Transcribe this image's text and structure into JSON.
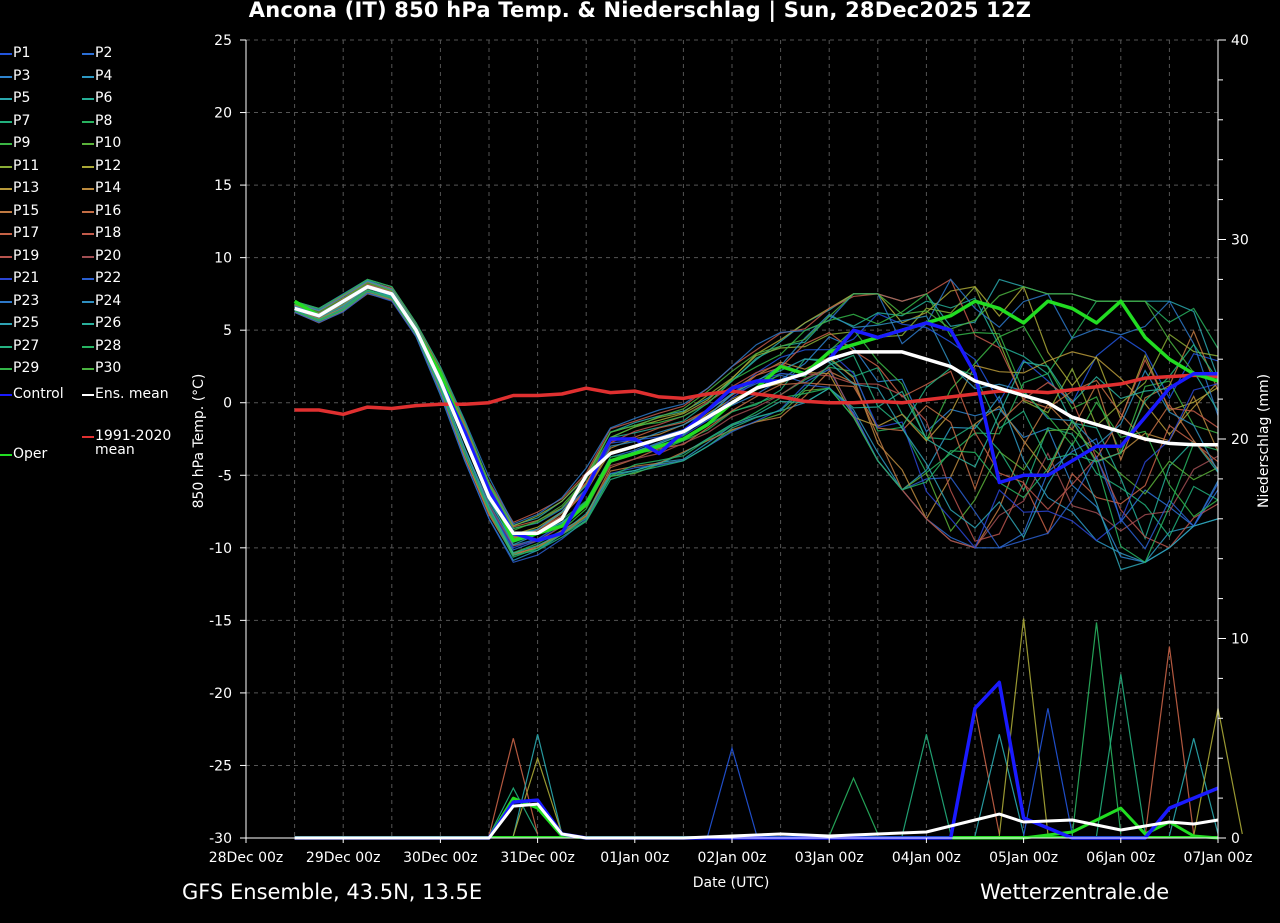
{
  "header": {
    "title": "Ancona  (IT)  850 hPa Temp. & Niederschlag | Sun, 28Dec2025 12Z"
  },
  "footer": {
    "left": "GFS Ensemble, 43.5N, 13.5E",
    "right": "Wetterzentrale.de"
  },
  "legend": {
    "members": [
      "P1",
      "P2",
      "P3",
      "P4",
      "P5",
      "P6",
      "P7",
      "P8",
      "P9",
      "P10",
      "P11",
      "P12",
      "P13",
      "P14",
      "P15",
      "P16",
      "P17",
      "P18",
      "P19",
      "P20",
      "P21",
      "P22",
      "P23",
      "P24",
      "P25",
      "P26",
      "P27",
      "P28",
      "P29",
      "P30"
    ],
    "member_colors": [
      "#2255dd",
      "#2b6fd6",
      "#2e84cf",
      "#2d98c2",
      "#2aa8ae",
      "#25ae96",
      "#22b07d",
      "#28b25f",
      "#3bb544",
      "#5ab23a",
      "#8aad36",
      "#aaa836",
      "#b89a3a",
      "#bb8a3e",
      "#c07a42",
      "#c36d44",
      "#c66246",
      "#c25a4a",
      "#b8544e",
      "#a04e52",
      "#2a45d4",
      "#2a5fcf",
      "#2d78c8",
      "#2f8fc0",
      "#2ea3b4",
      "#2ab09c",
      "#25b381",
      "#27b462",
      "#33b548",
      "#4ab240"
    ],
    "control": {
      "label": "Control",
      "color": "#1a1aff"
    },
    "ens_mean": {
      "label": "Ens. mean",
      "color": "#ffffff"
    },
    "climate": {
      "label": "1991-2020",
      "label2": "mean",
      "color": "#e03030"
    },
    "oper": {
      "label": "Oper",
      "color": "#22dd22"
    }
  },
  "chart_data": {
    "type": "line",
    "title": "Ancona  (IT)  850 hPa Temp. & Niederschlag | Sun, 28Dec2025 12Z",
    "xlabel": "Date (UTC)",
    "ylabel": "850 hPa Temp. (°C)",
    "y2label": "Niederschlag (mm)",
    "ylim": [
      -30,
      25
    ],
    "y2lim": [
      0,
      40
    ],
    "yticks": [
      25,
      20,
      15,
      10,
      5,
      0,
      -5,
      -10,
      -15,
      -20,
      -25,
      -30
    ],
    "y2ticks": [
      40,
      30,
      20,
      10,
      0
    ],
    "x_tick_labels": [
      "28Dec 00z",
      "29Dec 00z",
      "30Dec 00z",
      "31Dec 00z",
      "01Jan 00z",
      "02Jan 00z",
      "03Jan 00z",
      "04Jan 00z",
      "05Jan 00z",
      "06Jan 00z",
      "07Jan 00z"
    ],
    "x_unit": "hours since 28Dec 00z",
    "x_range": [
      0,
      240
    ],
    "grid": true,
    "series": [
      {
        "name": "Oper",
        "axis": "temp",
        "x": [
          12,
          18,
          24,
          30,
          36,
          42,
          48,
          54,
          60,
          66,
          72,
          78,
          84,
          90,
          96,
          102,
          108,
          114,
          120,
          126,
          132,
          138,
          144,
          150,
          156,
          162,
          168,
          174,
          180,
          186,
          192,
          198,
          204,
          210,
          216,
          222,
          228,
          234,
          240
        ],
        "values": [
          7,
          6,
          7,
          8,
          7.5,
          5,
          2,
          -2,
          -6,
          -9.5,
          -9,
          -8.5,
          -7,
          -4,
          -3.5,
          -3,
          -2.5,
          -1.5,
          0,
          1,
          2.5,
          2,
          3.5,
          4,
          4.5,
          5,
          5.5,
          6,
          7,
          6.5,
          5.5,
          7,
          6.5,
          5.5,
          7,
          4.5,
          3,
          2,
          1.5
        ]
      },
      {
        "name": "Control",
        "axis": "temp",
        "x": [
          12,
          18,
          24,
          30,
          36,
          42,
          48,
          54,
          60,
          66,
          72,
          78,
          84,
          90,
          96,
          102,
          108,
          114,
          120,
          126,
          132,
          138,
          144,
          150,
          156,
          162,
          168,
          174,
          180,
          186,
          192,
          198,
          204,
          210,
          216,
          222,
          228,
          234,
          240
        ],
        "values": [
          6.5,
          6,
          7,
          8,
          7.5,
          5,
          1.5,
          -2,
          -6,
          -9,
          -9.5,
          -9,
          -6,
          -2.5,
          -2.5,
          -3.5,
          -2,
          -0.5,
          1,
          1.5,
          1.5,
          2,
          3,
          5,
          4.5,
          5,
          5.5,
          5,
          2,
          -5.5,
          -5,
          -5,
          -4,
          -3,
          -3,
          -1,
          1,
          2,
          2
        ]
      },
      {
        "name": "Ens. mean",
        "axis": "temp",
        "x": [
          12,
          18,
          24,
          30,
          36,
          42,
          48,
          54,
          60,
          66,
          72,
          78,
          84,
          90,
          96,
          102,
          108,
          114,
          120,
          126,
          132,
          138,
          144,
          150,
          156,
          162,
          168,
          174,
          180,
          186,
          192,
          198,
          204,
          210,
          216,
          222,
          228,
          234,
          240
        ],
        "values": [
          6.5,
          6,
          7,
          8,
          7.5,
          5,
          1.5,
          -2.5,
          -6.5,
          -9,
          -9,
          -8,
          -5,
          -3.5,
          -3,
          -2.5,
          -2,
          -1,
          0,
          1,
          1.5,
          2,
          3,
          3.5,
          3.5,
          3.5,
          3,
          2.5,
          1.5,
          1,
          0.5,
          0,
          -1,
          -1.5,
          -2,
          -2.5,
          -2.8,
          -2.9,
          -2.9
        ]
      },
      {
        "name": "1991-2020 mean",
        "axis": "temp",
        "x": [
          12,
          18,
          24,
          30,
          36,
          42,
          48,
          54,
          60,
          66,
          72,
          78,
          84,
          90,
          96,
          102,
          108,
          114,
          120,
          126,
          132,
          138,
          144,
          150,
          156,
          162,
          168,
          174,
          180,
          186,
          192,
          198,
          204,
          210,
          216,
          222,
          228,
          234,
          240
        ],
        "values": [
          -0.5,
          -0.5,
          -0.8,
          -0.3,
          -0.4,
          -0.2,
          -0.1,
          -0.1,
          0,
          0.5,
          0.5,
          0.6,
          1,
          0.7,
          0.8,
          0.4,
          0.3,
          0.6,
          0.8,
          0.6,
          0.4,
          0.1,
          0,
          0,
          0.1,
          0,
          0.2,
          0.4,
          0.6,
          0.8,
          0.8,
          0.7,
          0.9,
          1.1,
          1.3,
          1.7,
          1.8,
          1.9,
          1.8
        ]
      },
      {
        "name": "Ens. mean precip",
        "axis": "precip",
        "x": [
          12,
          24,
          36,
          48,
          60,
          66,
          72,
          78,
          84,
          96,
          108,
          120,
          132,
          144,
          156,
          168,
          174,
          180,
          186,
          192,
          204,
          216,
          222,
          228,
          234,
          240
        ],
        "values": [
          0,
          0,
          0,
          0,
          0,
          1.6,
          1.7,
          0.2,
          0,
          0,
          0,
          0.1,
          0.2,
          0.1,
          0.2,
          0.3,
          0.6,
          0.9,
          1.2,
          0.8,
          0.9,
          0.4,
          0.6,
          0.8,
          0.7,
          0.9
        ]
      },
      {
        "name": "Control precip",
        "axis": "precip",
        "x": [
          12,
          24,
          36,
          48,
          60,
          66,
          72,
          78,
          84,
          96,
          108,
          120,
          132,
          144,
          156,
          168,
          174,
          180,
          186,
          192,
          204,
          216,
          222,
          228,
          234,
          240
        ],
        "values": [
          0,
          0,
          0,
          0,
          0,
          1.8,
          1.9,
          0.2,
          0,
          0,
          0,
          0,
          0,
          0,
          0,
          0,
          0,
          6.5,
          7.8,
          1,
          0,
          0,
          0,
          1.5,
          2,
          2.5
        ]
      },
      {
        "name": "Oper precip",
        "axis": "precip",
        "x": [
          12,
          24,
          36,
          48,
          60,
          66,
          72,
          78,
          84,
          96,
          108,
          120,
          132,
          144,
          156,
          168,
          174,
          180,
          186,
          192,
          204,
          216,
          222,
          228,
          234,
          240
        ],
        "values": [
          0,
          0,
          0,
          0,
          0,
          2,
          1.5,
          0.1,
          0,
          0,
          0,
          0,
          0,
          0,
          0,
          0,
          0,
          0,
          0,
          0,
          0.3,
          1.5,
          0.2,
          0.8,
          0.1,
          0
        ]
      }
    ],
    "member_spread": {
      "temp_min": [
        6.2,
        5.5,
        6.2,
        7.5,
        7,
        4.5,
        0.5,
        -4,
        -8,
        -11,
        -10.5,
        -9.5,
        -8.5,
        -5.5,
        -5,
        -4.5,
        -4,
        -3,
        -2,
        -1.5,
        -1,
        0,
        1,
        -1,
        -4,
        -6,
        -8,
        -9.5,
        -10,
        -10,
        -9.5,
        -9,
        -9,
        -9.5,
        -11.5,
        -11,
        -10,
        -8.5,
        -8
      ],
      "temp_max": [
        7,
        6.5,
        7.5,
        8.5,
        8,
        5.5,
        2.5,
        -1,
        -5,
        -8,
        -7.5,
        -6.5,
        -4.5,
        -1.5,
        -1,
        -0.5,
        0,
        1,
        2.5,
        4,
        5,
        5.5,
        6.5,
        7.5,
        7.5,
        7,
        7.5,
        8.5,
        8,
        8.5,
        8,
        7.5,
        7.5,
        7,
        7,
        7,
        7,
        6.5,
        4
      ],
      "precip_peaks": [
        {
          "x": 66,
          "value": 2.5
        },
        {
          "x": 66,
          "value": 5
        },
        {
          "x": 72,
          "value": 5.2
        },
        {
          "x": 72,
          "value": 4
        },
        {
          "x": 120,
          "value": 4.5
        },
        {
          "x": 150,
          "value": 3
        },
        {
          "x": 168,
          "value": 5.2
        },
        {
          "x": 180,
          "value": 6.5
        },
        {
          "x": 186,
          "value": 5.2
        },
        {
          "x": 192,
          "value": 11
        },
        {
          "x": 198,
          "value": 6.5
        },
        {
          "x": 210,
          "value": 10.8
        },
        {
          "x": 216,
          "value": 8.2
        },
        {
          "x": 228,
          "value": 9.6
        },
        {
          "x": 234,
          "value": 5
        },
        {
          "x": 240,
          "value": 6.5
        }
      ]
    }
  }
}
